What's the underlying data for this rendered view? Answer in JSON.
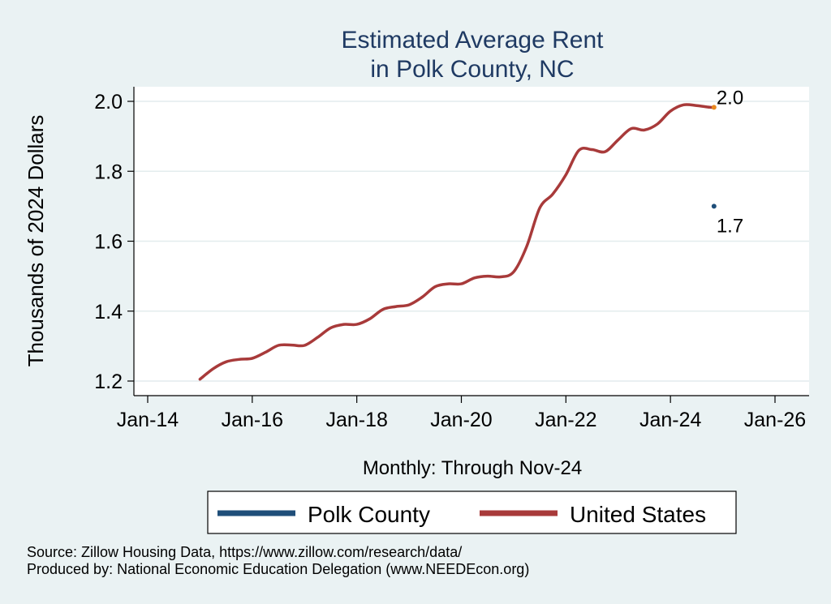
{
  "chart_data": {
    "type": "line",
    "title_lines": [
      "Estimated Average Rent",
      "in Polk County, NC"
    ],
    "ylabel": "Thousands of 2024 Dollars",
    "xlabel": "Monthly: Through Nov-24",
    "ylim": [
      1.2,
      2.0
    ],
    "yticks": [
      1.2,
      1.4,
      1.6,
      1.8,
      2.0
    ],
    "ytick_labels": [
      "1.2",
      "1.4",
      "1.6",
      "1.8",
      "2.0"
    ],
    "xlim": [
      2014,
      2026
    ],
    "xticks": [
      2014,
      2016,
      2018,
      2020,
      2022,
      2024,
      2026
    ],
    "xtick_labels": [
      "Jan-14",
      "Jan-16",
      "Jan-18",
      "Jan-20",
      "Jan-22",
      "Jan-24",
      "Jan-26"
    ],
    "grid": true,
    "series": [
      {
        "name": "Polk County",
        "color": "#1f4e79",
        "x": [
          2024.833
        ],
        "y": [
          1.7
        ],
        "end_label": "1.7"
      },
      {
        "name": "United States",
        "color": "#a83a3a",
        "x": [
          2015.0,
          2015.25,
          2015.5,
          2015.75,
          2016.0,
          2016.25,
          2016.5,
          2016.75,
          2017.0,
          2017.25,
          2017.5,
          2017.75,
          2018.0,
          2018.25,
          2018.5,
          2018.75,
          2019.0,
          2019.25,
          2019.5,
          2019.75,
          2020.0,
          2020.25,
          2020.5,
          2020.75,
          2021.0,
          2021.25,
          2021.5,
          2021.75,
          2022.0,
          2022.25,
          2022.5,
          2022.75,
          2023.0,
          2023.25,
          2023.5,
          2023.75,
          2024.0,
          2024.25,
          2024.5,
          2024.75,
          2024.833
        ],
        "y": [
          1.205,
          1.235,
          1.255,
          1.262,
          1.265,
          1.282,
          1.302,
          1.303,
          1.302,
          1.325,
          1.352,
          1.362,
          1.362,
          1.378,
          1.405,
          1.413,
          1.418,
          1.44,
          1.47,
          1.478,
          1.478,
          1.495,
          1.5,
          1.498,
          1.512,
          1.585,
          1.695,
          1.735,
          1.79,
          1.86,
          1.862,
          1.856,
          1.89,
          1.922,
          1.918,
          1.935,
          1.972,
          1.99,
          1.988,
          1.983,
          1.983
        ],
        "end_marker_color": "#e8871e",
        "end_label": "2.0"
      }
    ],
    "legend": [
      "Polk County",
      "United States"
    ],
    "legend_position": "bottom",
    "source_lines": [
      "Source: Zillow Housing Data, https://www.zillow.com/research/data/",
      "Produced by: National Economic Education Delegation (www.NEEDEcon.org)"
    ]
  }
}
